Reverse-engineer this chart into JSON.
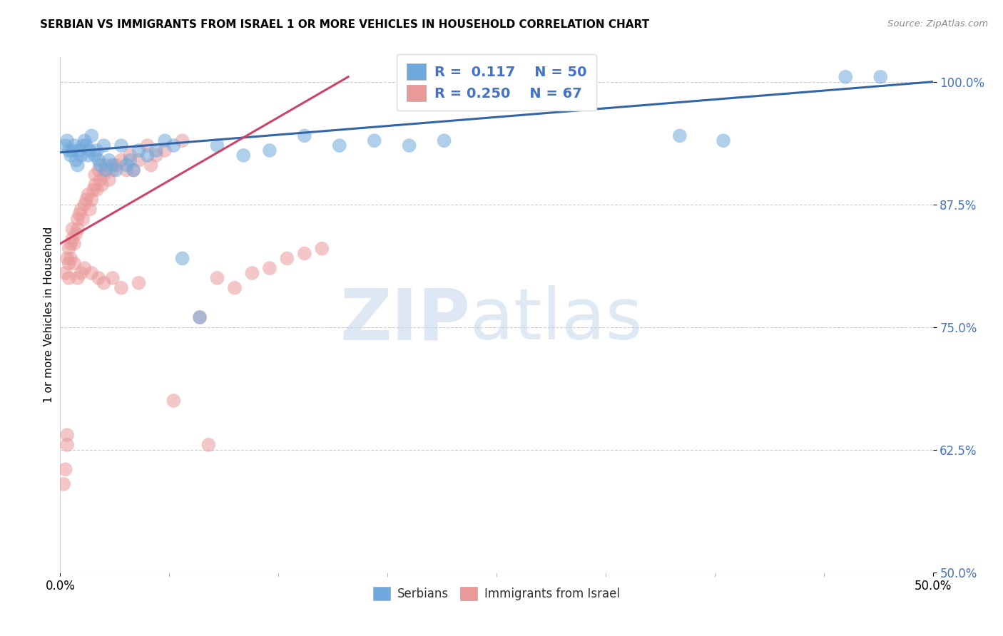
{
  "title": "SERBIAN VS IMMIGRANTS FROM ISRAEL 1 OR MORE VEHICLES IN HOUSEHOLD CORRELATION CHART",
  "source": "Source: ZipAtlas.com",
  "ylabel": "1 or more Vehicles in Household",
  "xlim": [
    0.0,
    50.0
  ],
  "ylim": [
    50.0,
    102.5
  ],
  "yticks": [
    50.0,
    62.5,
    75.0,
    87.5,
    100.0
  ],
  "legend_labels": [
    "Serbians",
    "Immigrants from Israel"
  ],
  "blue_R": "0.117",
  "blue_N": "50",
  "pink_R": "0.250",
  "pink_N": "67",
  "blue_color": "#6fa8dc",
  "pink_color": "#ea9999",
  "blue_line_color": "#3465a4",
  "pink_line_color": "#cc4466",
  "watermark_zip": "ZIP",
  "watermark_atlas": "atlas",
  "blue_line_x": [
    0.0,
    50.0
  ],
  "blue_line_y": [
    92.8,
    100.0
  ],
  "pink_line_x": [
    0.0,
    16.5
  ],
  "pink_line_y": [
    83.5,
    100.5
  ],
  "blue_scatter_x": [
    0.3,
    0.4,
    0.5,
    0.6,
    0.7,
    0.8,
    0.9,
    1.0,
    1.1,
    1.2,
    1.3,
    1.4,
    1.5,
    1.6,
    1.7,
    1.8,
    2.0,
    2.1,
    2.2,
    2.3,
    2.5,
    2.6,
    2.8,
    3.0,
    3.2,
    3.5,
    3.8,
    4.0,
    4.2,
    4.5,
    5.0,
    5.5,
    6.0,
    6.5,
    7.0,
    8.0,
    9.0,
    10.5,
    12.0,
    14.0,
    16.0,
    18.0,
    20.0,
    22.0,
    26.0,
    30.0,
    35.5,
    38.0,
    45.0,
    47.0
  ],
  "blue_scatter_y": [
    93.5,
    94.0,
    93.0,
    92.5,
    93.0,
    93.5,
    92.0,
    91.5,
    93.0,
    92.5,
    93.5,
    94.0,
    93.5,
    92.5,
    93.0,
    94.5,
    92.5,
    93.0,
    92.0,
    91.5,
    93.5,
    91.0,
    92.0,
    91.5,
    91.0,
    93.5,
    91.5,
    92.0,
    91.0,
    93.0,
    92.5,
    93.0,
    94.0,
    93.5,
    82.0,
    76.0,
    93.5,
    92.5,
    93.0,
    94.5,
    93.5,
    94.0,
    93.5,
    94.0,
    100.0,
    100.5,
    94.5,
    94.0,
    100.5,
    100.5
  ],
  "pink_scatter_x": [
    0.2,
    0.3,
    0.4,
    0.4,
    0.5,
    0.5,
    0.6,
    0.6,
    0.7,
    0.7,
    0.8,
    0.9,
    1.0,
    1.0,
    1.1,
    1.2,
    1.3,
    1.4,
    1.5,
    1.6,
    1.7,
    1.8,
    1.9,
    2.0,
    2.0,
    2.1,
    2.2,
    2.3,
    2.4,
    2.5,
    2.6,
    2.8,
    3.0,
    3.2,
    3.5,
    3.8,
    4.0,
    4.2,
    4.5,
    5.0,
    5.2,
    5.5,
    6.0,
    7.0,
    8.0,
    9.0,
    10.0,
    11.0,
    12.0,
    13.0,
    14.0,
    15.0,
    0.3,
    0.4,
    0.5,
    0.8,
    1.0,
    1.2,
    1.4,
    1.8,
    2.2,
    2.5,
    3.0,
    3.5,
    4.5,
    6.5,
    8.5
  ],
  "pink_scatter_y": [
    59.0,
    60.5,
    63.0,
    64.0,
    81.5,
    83.0,
    82.0,
    83.5,
    84.0,
    85.0,
    83.5,
    84.5,
    85.0,
    86.0,
    86.5,
    87.0,
    86.0,
    87.5,
    88.0,
    88.5,
    87.0,
    88.0,
    89.0,
    89.5,
    90.5,
    89.0,
    91.0,
    90.0,
    89.5,
    90.5,
    91.5,
    90.0,
    91.0,
    91.5,
    92.0,
    91.0,
    92.5,
    91.0,
    92.0,
    93.5,
    91.5,
    92.5,
    93.0,
    94.0,
    76.0,
    80.0,
    79.0,
    80.5,
    81.0,
    82.0,
    82.5,
    83.0,
    80.5,
    82.0,
    80.0,
    81.5,
    80.0,
    80.5,
    81.0,
    80.5,
    80.0,
    79.5,
    80.0,
    79.0,
    79.5,
    67.5,
    63.0
  ]
}
